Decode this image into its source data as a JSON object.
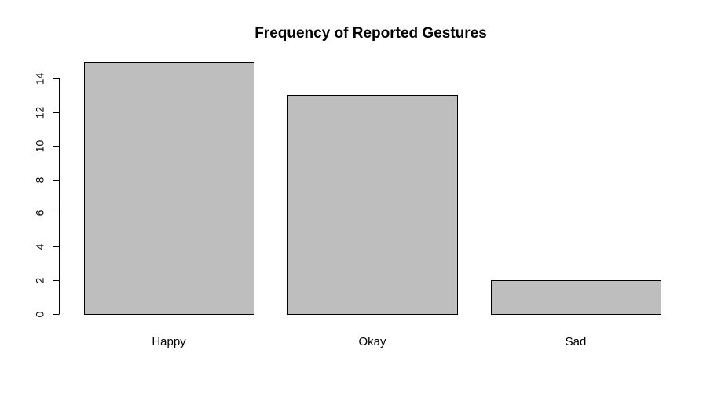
{
  "chart_data": {
    "type": "bar",
    "title": "Frequency of Reported Gestures",
    "xlabel": "",
    "ylabel": "",
    "categories": [
      "Happy",
      "Okay",
      "Sad"
    ],
    "values": [
      15,
      13,
      2
    ],
    "ylim": [
      0,
      15
    ],
    "yticks": [
      0,
      2,
      4,
      6,
      8,
      10,
      12,
      14
    ],
    "ytick_labels": [
      "0",
      "2",
      "4",
      "6",
      "8",
      "10",
      "12",
      "14"
    ],
    "bar_color": "#bebebe",
    "grid": false,
    "legend": "none"
  }
}
